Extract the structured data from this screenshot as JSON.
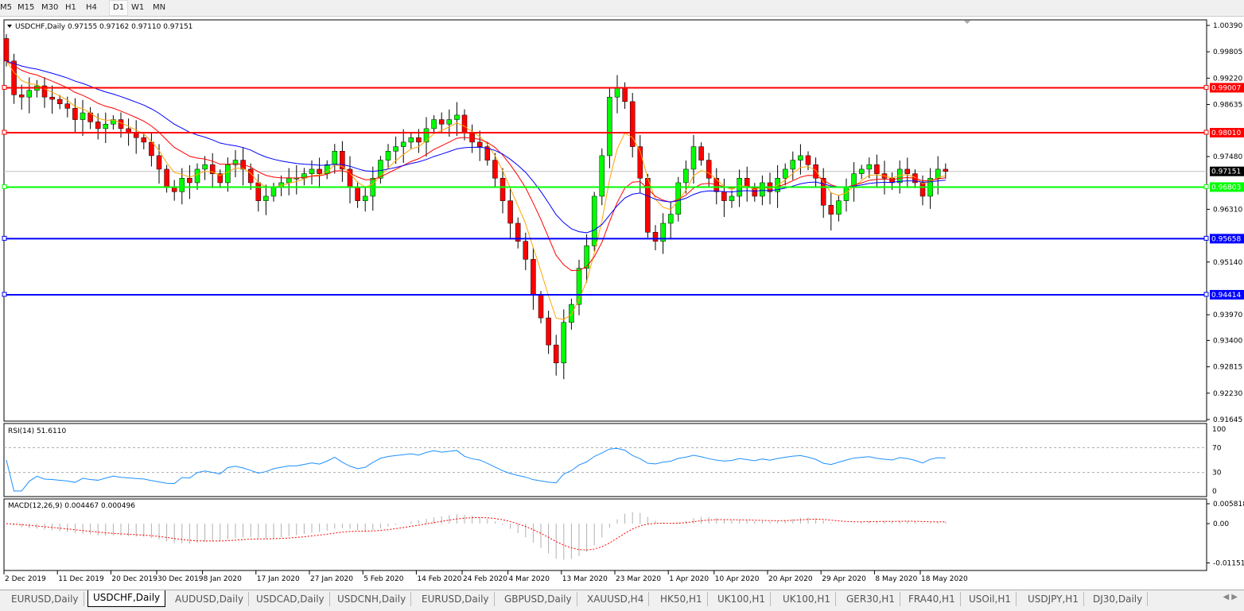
{
  "toolbar": {
    "timeframes": [
      "M5",
      "M15",
      "M30",
      "H1",
      "H4",
      "D1",
      "W1",
      "MN"
    ],
    "active": "D1"
  },
  "chart": {
    "header": "USDCHF,Daily  0.97155 0.97162 0.97110 0.97151",
    "symbol": "USDCHF",
    "period": "Daily",
    "current_price": "0.97151"
  },
  "price_axis": {
    "ticks": [
      "1.00390",
      "0.99805",
      "0.99220",
      "0.98635",
      "0.97480",
      "0.96310",
      "0.95140",
      "0.93970",
      "0.93400",
      "0.92815",
      "0.92230",
      "0.91645"
    ]
  },
  "levels": [
    {
      "price": 0.99007,
      "label": "0.99007",
      "color": "#ff0000"
    },
    {
      "price": 0.9801,
      "label": "0.98010",
      "color": "#ff0000"
    },
    {
      "price": 0.96803,
      "label": "0.96803",
      "color": "#00ff00"
    },
    {
      "price": 0.95658,
      "label": "0.95658",
      "color": "#0000ff"
    },
    {
      "price": 0.94414,
      "label": "0.94414",
      "color": "#0000ff"
    }
  ],
  "rsi": {
    "label": "RSI(14) 51.6110",
    "ticks": [
      "100",
      "70",
      "30",
      "0"
    ],
    "color": "#1e90ff"
  },
  "macd": {
    "label": "MACD(12,26,9) 0.004467 0.000496",
    "ticks": [
      "0.005818",
      "0.00",
      "-0.011514"
    ]
  },
  "date_axis": [
    "2 Dec 2019",
    "11 Dec 2019",
    "20 Dec 2019",
    "30 Dec 2019",
    "8 Jan 2020",
    "17 Jan 2020",
    "27 Jan 2020",
    "5 Feb 2020",
    "14 Feb 2020",
    "24 Feb 2020",
    "4 Mar 2020",
    "13 Mar 2020",
    "23 Mar 2020",
    "1 Apr 2020",
    "10 Apr 2020",
    "20 Apr 2020",
    "29 Apr 2020",
    "8 May 2020",
    "18 May 2020"
  ],
  "tabs": [
    "EURUSD,Daily",
    "USDCHF,Daily",
    "AUDUSD,Daily",
    "USDCAD,Daily",
    "USDCNH,Daily",
    "EURUSD,Daily",
    "GBPUSD,Daily",
    "XAUUSD,H4",
    "HK50,H1",
    "UK100,H1",
    "UK100,H1",
    "GER30,H1",
    "FRA40,H1",
    "USOil,H1",
    "USDJPY,H1",
    "DJ30,Daily"
  ],
  "active_tab": "USDCHF,Daily",
  "colors": {
    "bull": "#00ff00",
    "bear": "#ff0000",
    "ma_fast": "#ffa500",
    "ma_mid": "#ff0000",
    "ma_slow": "#0000ff"
  },
  "chart_data": {
    "type": "candlestick",
    "first_date": "2 Dec 2019",
    "ylim": [
      0.91645,
      1.0039
    ],
    "closes": [
      0.996,
      0.9885,
      0.988,
      0.9895,
      0.9905,
      0.988,
      0.9875,
      0.9865,
      0.9855,
      0.983,
      0.9845,
      0.9825,
      0.981,
      0.982,
      0.983,
      0.981,
      0.98,
      0.979,
      0.978,
      0.975,
      0.972,
      0.968,
      0.967,
      0.97,
      0.969,
      0.972,
      0.973,
      0.971,
      0.969,
      0.973,
      0.974,
      0.972,
      0.969,
      0.965,
      0.966,
      0.968,
      0.969,
      0.97,
      0.97,
      0.971,
      0.972,
      0.971,
      0.973,
      0.976,
      0.972,
      0.968,
      0.965,
      0.966,
      0.97,
      0.974,
      0.976,
      0.977,
      0.978,
      0.979,
      0.978,
      0.981,
      0.983,
      0.982,
      0.983,
      0.984,
      0.98,
      0.978,
      0.977,
      0.974,
      0.97,
      0.965,
      0.96,
      0.956,
      0.952,
      0.944,
      0.939,
      0.933,
      0.929,
      0.938,
      0.942,
      0.95,
      0.955,
      0.966,
      0.975,
      0.988,
      0.99,
      0.987,
      0.977,
      0.97,
      0.958,
      0.956,
      0.96,
      0.962,
      0.969,
      0.972,
      0.977,
      0.974,
      0.97,
      0.967,
      0.965,
      0.966,
      0.97,
      0.968,
      0.966,
      0.969,
      0.967,
      0.97,
      0.972,
      0.974,
      0.975,
      0.973,
      0.97,
      0.964,
      0.962,
      0.965,
      0.968,
      0.971,
      0.972,
      0.973,
      0.971,
      0.97,
      0.969,
      0.972,
      0.971,
      0.969,
      0.966,
      0.97,
      0.972,
      0.9715
    ]
  }
}
